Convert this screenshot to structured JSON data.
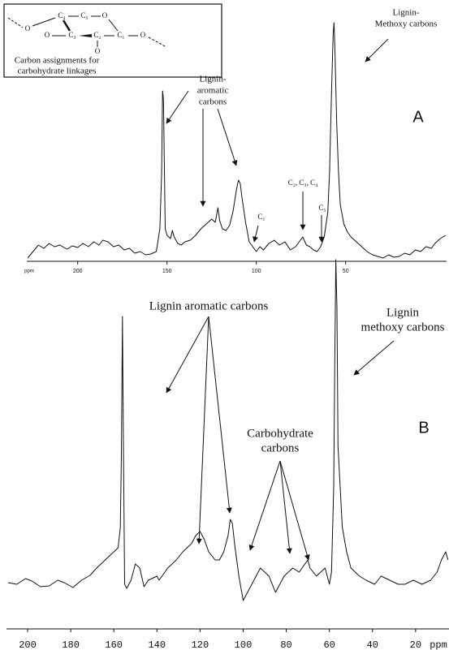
{
  "chart_data": [
    {
      "type": "line",
      "panel_label": "A",
      "xlabel": "ppm",
      "color": "#111111",
      "xlim": [
        228.5,
        -6.5
      ],
      "xticks": [
        200,
        150,
        100,
        50
      ],
      "x": [
        228,
        225,
        222,
        219,
        216,
        213,
        210,
        206,
        203,
        200,
        197,
        194,
        191,
        188,
        186,
        183,
        180,
        177,
        174,
        171,
        168,
        165,
        162,
        159,
        156,
        154,
        153,
        152.5,
        152,
        151.5,
        151,
        150,
        148,
        147,
        146,
        144,
        142,
        140,
        137,
        134,
        131,
        128,
        125,
        123,
        121.5,
        120.5,
        119,
        117,
        115,
        113,
        111,
        110,
        109,
        108,
        106,
        104,
        102,
        100,
        98,
        96,
        93,
        90,
        87,
        84,
        81,
        78,
        76,
        74,
        72,
        70,
        68,
        66,
        64,
        62,
        60,
        59,
        58,
        57,
        56.5,
        56,
        55,
        54,
        53,
        51,
        49,
        47,
        44,
        41,
        38,
        35,
        32,
        29,
        26,
        23,
        20,
        17,
        14,
        11,
        8,
        5,
        2,
        0,
        -3,
        -6
      ],
      "values": [
        4,
        12,
        20,
        16,
        22,
        18,
        20,
        15,
        19,
        17,
        22,
        18,
        24,
        20,
        26,
        24,
        18,
        20,
        14,
        16,
        10,
        12,
        8,
        9,
        12,
        40,
        110,
        210,
        200,
        120,
        40,
        32,
        28,
        38,
        30,
        22,
        20,
        24,
        26,
        32,
        40,
        46,
        52,
        48,
        66,
        50,
        40,
        38,
        44,
        62,
        90,
        100,
        96,
        78,
        48,
        24,
        18,
        12,
        18,
        14,
        22,
        26,
        20,
        24,
        14,
        18,
        24,
        30,
        20,
        18,
        14,
        12,
        18,
        30,
        60,
        110,
        200,
        280,
        294,
        260,
        170,
        110,
        70,
        46,
        36,
        30,
        24,
        18,
        12,
        8,
        6,
        4,
        8,
        5,
        6,
        10,
        8,
        14,
        12,
        18,
        16,
        22,
        28,
        32
      ],
      "annotations": [
        [
          "Lignin-",
          "Methoxy carbons"
        ],
        [
          "Lignin-",
          "aromatic",
          "carbons"
        ],
        [
          "C₁"
        ],
        [
          "C₂, C₃, C₄"
        ],
        [
          "C₅"
        ]
      ]
    },
    {
      "type": "line",
      "panel_label": "B",
      "xlabel": "ppm",
      "color": "#111111",
      "xlim": [
        209.8,
        4.5
      ],
      "xticks": [
        200,
        180,
        160,
        140,
        120,
        100,
        80,
        60,
        40,
        20
      ],
      "x": [
        209,
        205,
        201,
        198,
        194,
        190,
        186,
        183,
        179,
        175,
        171,
        168,
        164,
        160,
        158,
        157,
        156.5,
        156,
        155.5,
        155,
        154,
        152,
        150,
        148,
        146,
        144,
        140,
        139,
        135,
        131,
        128,
        124,
        122,
        120,
        118,
        116,
        113,
        111,
        109,
        107,
        106,
        105,
        104,
        102,
        100,
        96,
        92,
        88,
        85,
        81,
        77,
        74,
        70,
        69,
        66,
        62,
        60,
        59,
        58,
        57.5,
        57,
        56.5,
        56,
        54,
        52,
        50,
        46,
        43,
        39,
        36,
        32,
        28,
        25,
        21,
        17,
        13,
        10,
        8,
        6,
        5
      ],
      "values": [
        55,
        53,
        60,
        57,
        50,
        51,
        58,
        55,
        49,
        58,
        64,
        73,
        83,
        93,
        98,
        123,
        213,
        383,
        213,
        53,
        48,
        58,
        78,
        73,
        50,
        58,
        63,
        58,
        73,
        83,
        93,
        103,
        113,
        118,
        108,
        93,
        83,
        83,
        93,
        113,
        133,
        128,
        103,
        63,
        33,
        53,
        73,
        63,
        43,
        63,
        73,
        68,
        83,
        73,
        63,
        73,
        53,
        68,
        173,
        323,
        453,
        393,
        223,
        123,
        93,
        73,
        63,
        58,
        53,
        63,
        58,
        53,
        53,
        58,
        53,
        58,
        68,
        83,
        93,
        83
      ],
      "annotations": [
        [
          "Lignin aromatic carbons"
        ],
        [
          "Carbohydrate",
          "carbons"
        ],
        [
          "Lignin",
          "methoxy carbons"
        ]
      ]
    }
  ],
  "inset": {
    "top": [
      "C₄",
      "C₅",
      "O"
    ],
    "bottom": [
      "O",
      "C₃",
      "C₂",
      "C₁",
      "O"
    ],
    "below": "O",
    "left": "O",
    "caption": [
      "Carbon assignments for",
      "carbohydrate linkages"
    ]
  }
}
